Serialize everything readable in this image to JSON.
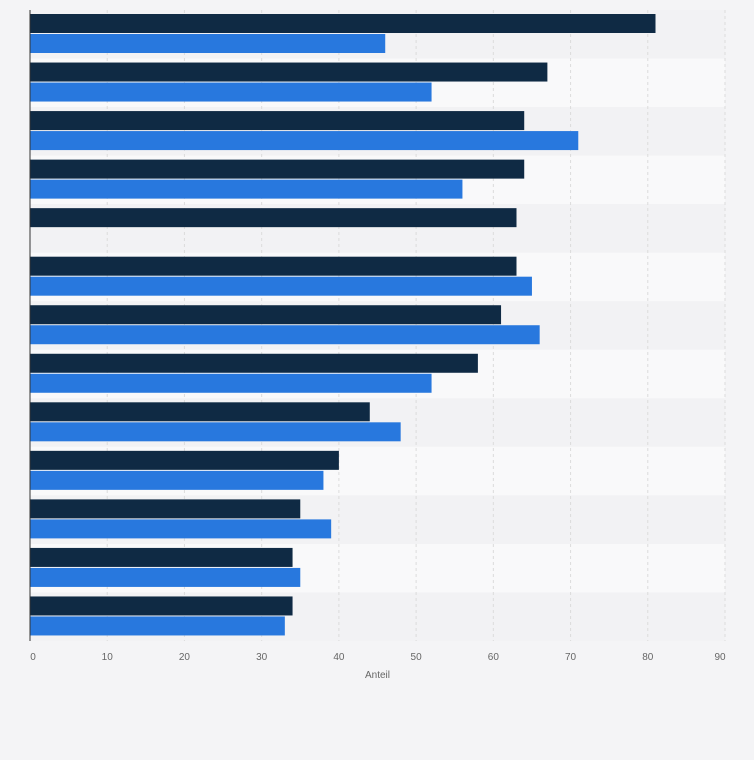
{
  "chart_data": {
    "type": "bar",
    "orientation": "horizontal",
    "title": "",
    "xlabel": "Anteil",
    "ylabel": "",
    "xlim": [
      0,
      90
    ],
    "x_ticks": [
      0,
      10,
      20,
      30,
      40,
      50,
      60,
      70,
      80,
      90
    ],
    "grid": true,
    "legend": "none",
    "categories": [
      "",
      "",
      "",
      "",
      "",
      "",
      "",
      "",
      "",
      "",
      "",
      "",
      ""
    ],
    "series": [
      {
        "color": "#0f2a44",
        "values": [
          81,
          67,
          64,
          64,
          63,
          63,
          61,
          58,
          44,
          40,
          35,
          34,
          34
        ]
      },
      {
        "color": "#2878de",
        "values": [
          46,
          52,
          71,
          56,
          null,
          65,
          66,
          52,
          48,
          38,
          39,
          35,
          33
        ]
      }
    ],
    "colors": {
      "background": "#f4f4f6",
      "band_light": "#f9f9fa",
      "band_dark": "#f2f2f4",
      "grid": "#dcdcdc",
      "axis": "#333333",
      "tick_text": "#666666"
    }
  }
}
